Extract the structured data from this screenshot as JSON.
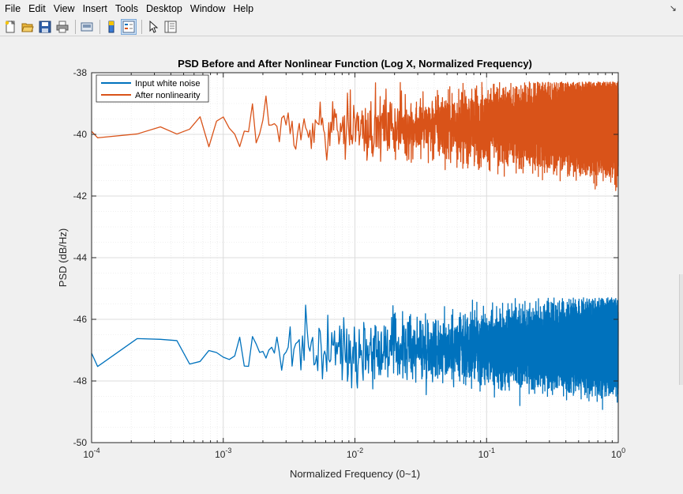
{
  "menubar": {
    "items": [
      "File",
      "Edit",
      "View",
      "Insert",
      "Tools",
      "Desktop",
      "Window",
      "Help"
    ]
  },
  "toolbar": {
    "buttons": [
      {
        "icon": "new-figure-icon"
      },
      {
        "icon": "open-file-icon"
      },
      {
        "icon": "save-icon"
      },
      {
        "icon": "print-icon"
      },
      {
        "icon": "link-plot-icon"
      },
      {
        "icon": "colorbar-icon"
      },
      {
        "icon": "legend-icon"
      },
      {
        "icon": "edit-plot-arrow-icon"
      },
      {
        "icon": "property-inspector-icon"
      }
    ]
  },
  "chart_data": {
    "type": "line",
    "title": "PSD Before and After Nonlinear Function (Log X, Normalized Frequency)",
    "xlabel": "Normalized Frequency (0~1)",
    "ylabel": "PSD (dB/Hz)",
    "xscale": "log",
    "xlim": [
      0.0001,
      1
    ],
    "ylim": [
      -50,
      -38
    ],
    "xtick_labels": [
      {
        "base": "10",
        "exp": "-4",
        "value": 0.0001
      },
      {
        "base": "10",
        "exp": "-3",
        "value": 0.001
      },
      {
        "base": "10",
        "exp": "-2",
        "value": 0.01
      },
      {
        "base": "10",
        "exp": "-1",
        "value": 0.1
      },
      {
        "base": "10",
        "exp": "0",
        "value": 1
      }
    ],
    "yticks": [
      -50,
      -48,
      -46,
      -44,
      -42,
      -40,
      -38
    ],
    "ytick_labels": [
      "-50",
      "-48",
      "-46",
      "-44",
      "-42",
      "-40",
      "-38"
    ],
    "grid": true,
    "minor_grid": true,
    "legend_position": "top-left",
    "series": [
      {
        "name": "Input white noise",
        "color": "#0072BD",
        "mean": -47.1,
        "spread_low_freq": 0.6,
        "spread_high_freq": 1.2,
        "min": -49.2,
        "max": -45.3
      },
      {
        "name": "After nonlinearity",
        "color": "#D95319",
        "mean": -39.9,
        "spread_low_freq": 0.4,
        "spread_high_freq": 1.3,
        "min": -42.5,
        "max": -38.3
      }
    ]
  }
}
